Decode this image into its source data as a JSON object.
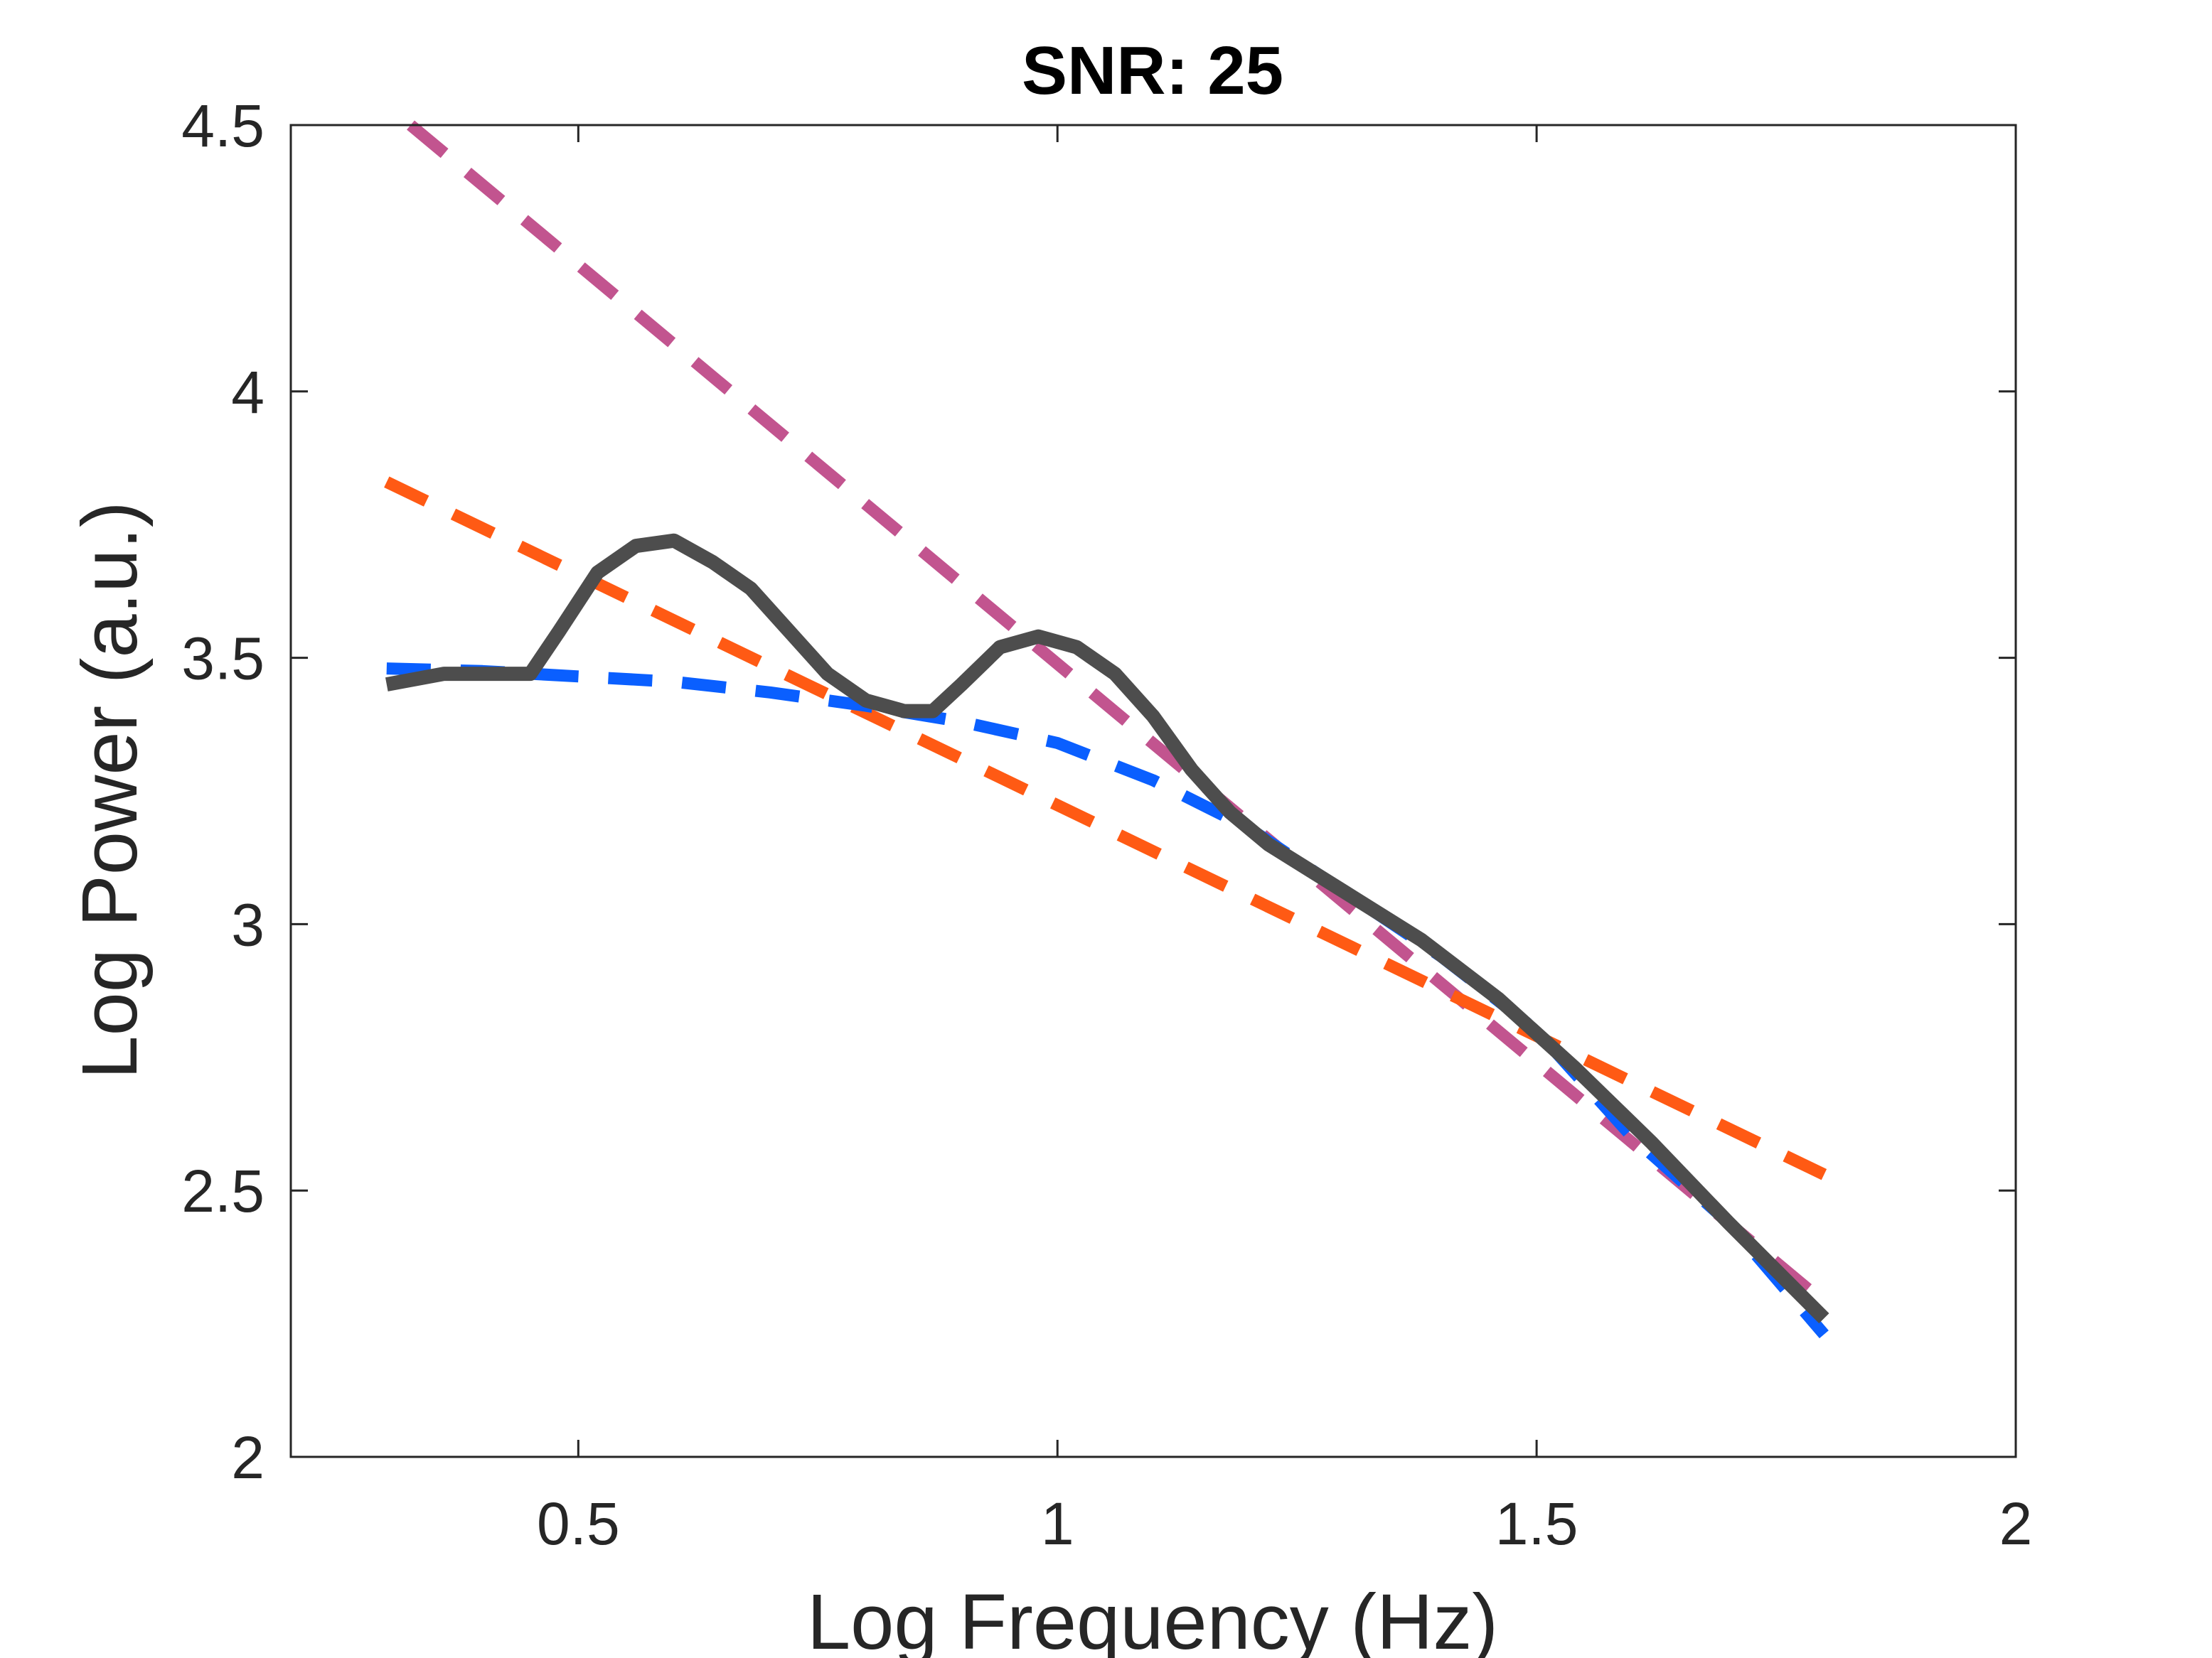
{
  "chart_data": {
    "type": "line",
    "title": "SNR: 25",
    "xlabel": "Log Frequency (Hz)",
    "ylabel": "Log Power (a.u.)",
    "xlim": [
      0.2,
      2.0
    ],
    "ylim": [
      2.0,
      4.5
    ],
    "xticks": [
      0.5,
      1.0,
      1.5,
      2.0
    ],
    "xtick_labels": [
      "0.5",
      "1",
      "1.5",
      "2"
    ],
    "yticks": [
      2.0,
      2.5,
      3.0,
      3.5,
      4.0,
      4.5
    ],
    "ytick_labels": [
      "2",
      "2.5",
      "3",
      "3.5",
      "4",
      "4.5"
    ],
    "grid": false,
    "series": [
      {
        "name": "magenta-dashed-fit",
        "color": "#C2548F",
        "style": "dashed",
        "x": [
          0.325,
          1.8
        ],
        "y": [
          4.5,
          2.29
        ]
      },
      {
        "name": "orange-dashed-fit",
        "color": "#FF5A14",
        "style": "dashed",
        "x": [
          0.3,
          1.8
        ],
        "y": [
          3.83,
          2.53
        ]
      },
      {
        "name": "blue-dashed-fit",
        "color": "#0A5FFF",
        "style": "dashed",
        "x": [
          0.3,
          0.4,
          0.5,
          0.6,
          0.7,
          0.8,
          0.9,
          1.0,
          1.1,
          1.2,
          1.3,
          1.4,
          1.5,
          1.6,
          1.7,
          1.8
        ],
        "y": [
          3.48,
          3.475,
          3.465,
          3.455,
          3.435,
          3.41,
          3.38,
          3.34,
          3.27,
          3.18,
          3.06,
          2.94,
          2.8,
          2.6,
          2.44,
          2.23
        ]
      },
      {
        "name": "power-spectrum",
        "color": "#4D4D4D",
        "style": "solid",
        "x": [
          0.3,
          0.33,
          0.36,
          0.39,
          0.42,
          0.45,
          0.48,
          0.52,
          0.56,
          0.6,
          0.64,
          0.68,
          0.72,
          0.76,
          0.8,
          0.84,
          0.87,
          0.9,
          0.94,
          0.98,
          1.02,
          1.06,
          1.1,
          1.14,
          1.18,
          1.22,
          1.3,
          1.38,
          1.46,
          1.54,
          1.62,
          1.7,
          1.8
        ],
        "y": [
          3.45,
          3.46,
          3.47,
          3.47,
          3.47,
          3.47,
          3.55,
          3.66,
          3.71,
          3.72,
          3.68,
          3.63,
          3.55,
          3.47,
          3.42,
          3.4,
          3.4,
          3.45,
          3.52,
          3.54,
          3.52,
          3.47,
          3.39,
          3.29,
          3.21,
          3.15,
          3.06,
          2.97,
          2.86,
          2.73,
          2.59,
          2.44,
          2.26
        ]
      }
    ]
  }
}
